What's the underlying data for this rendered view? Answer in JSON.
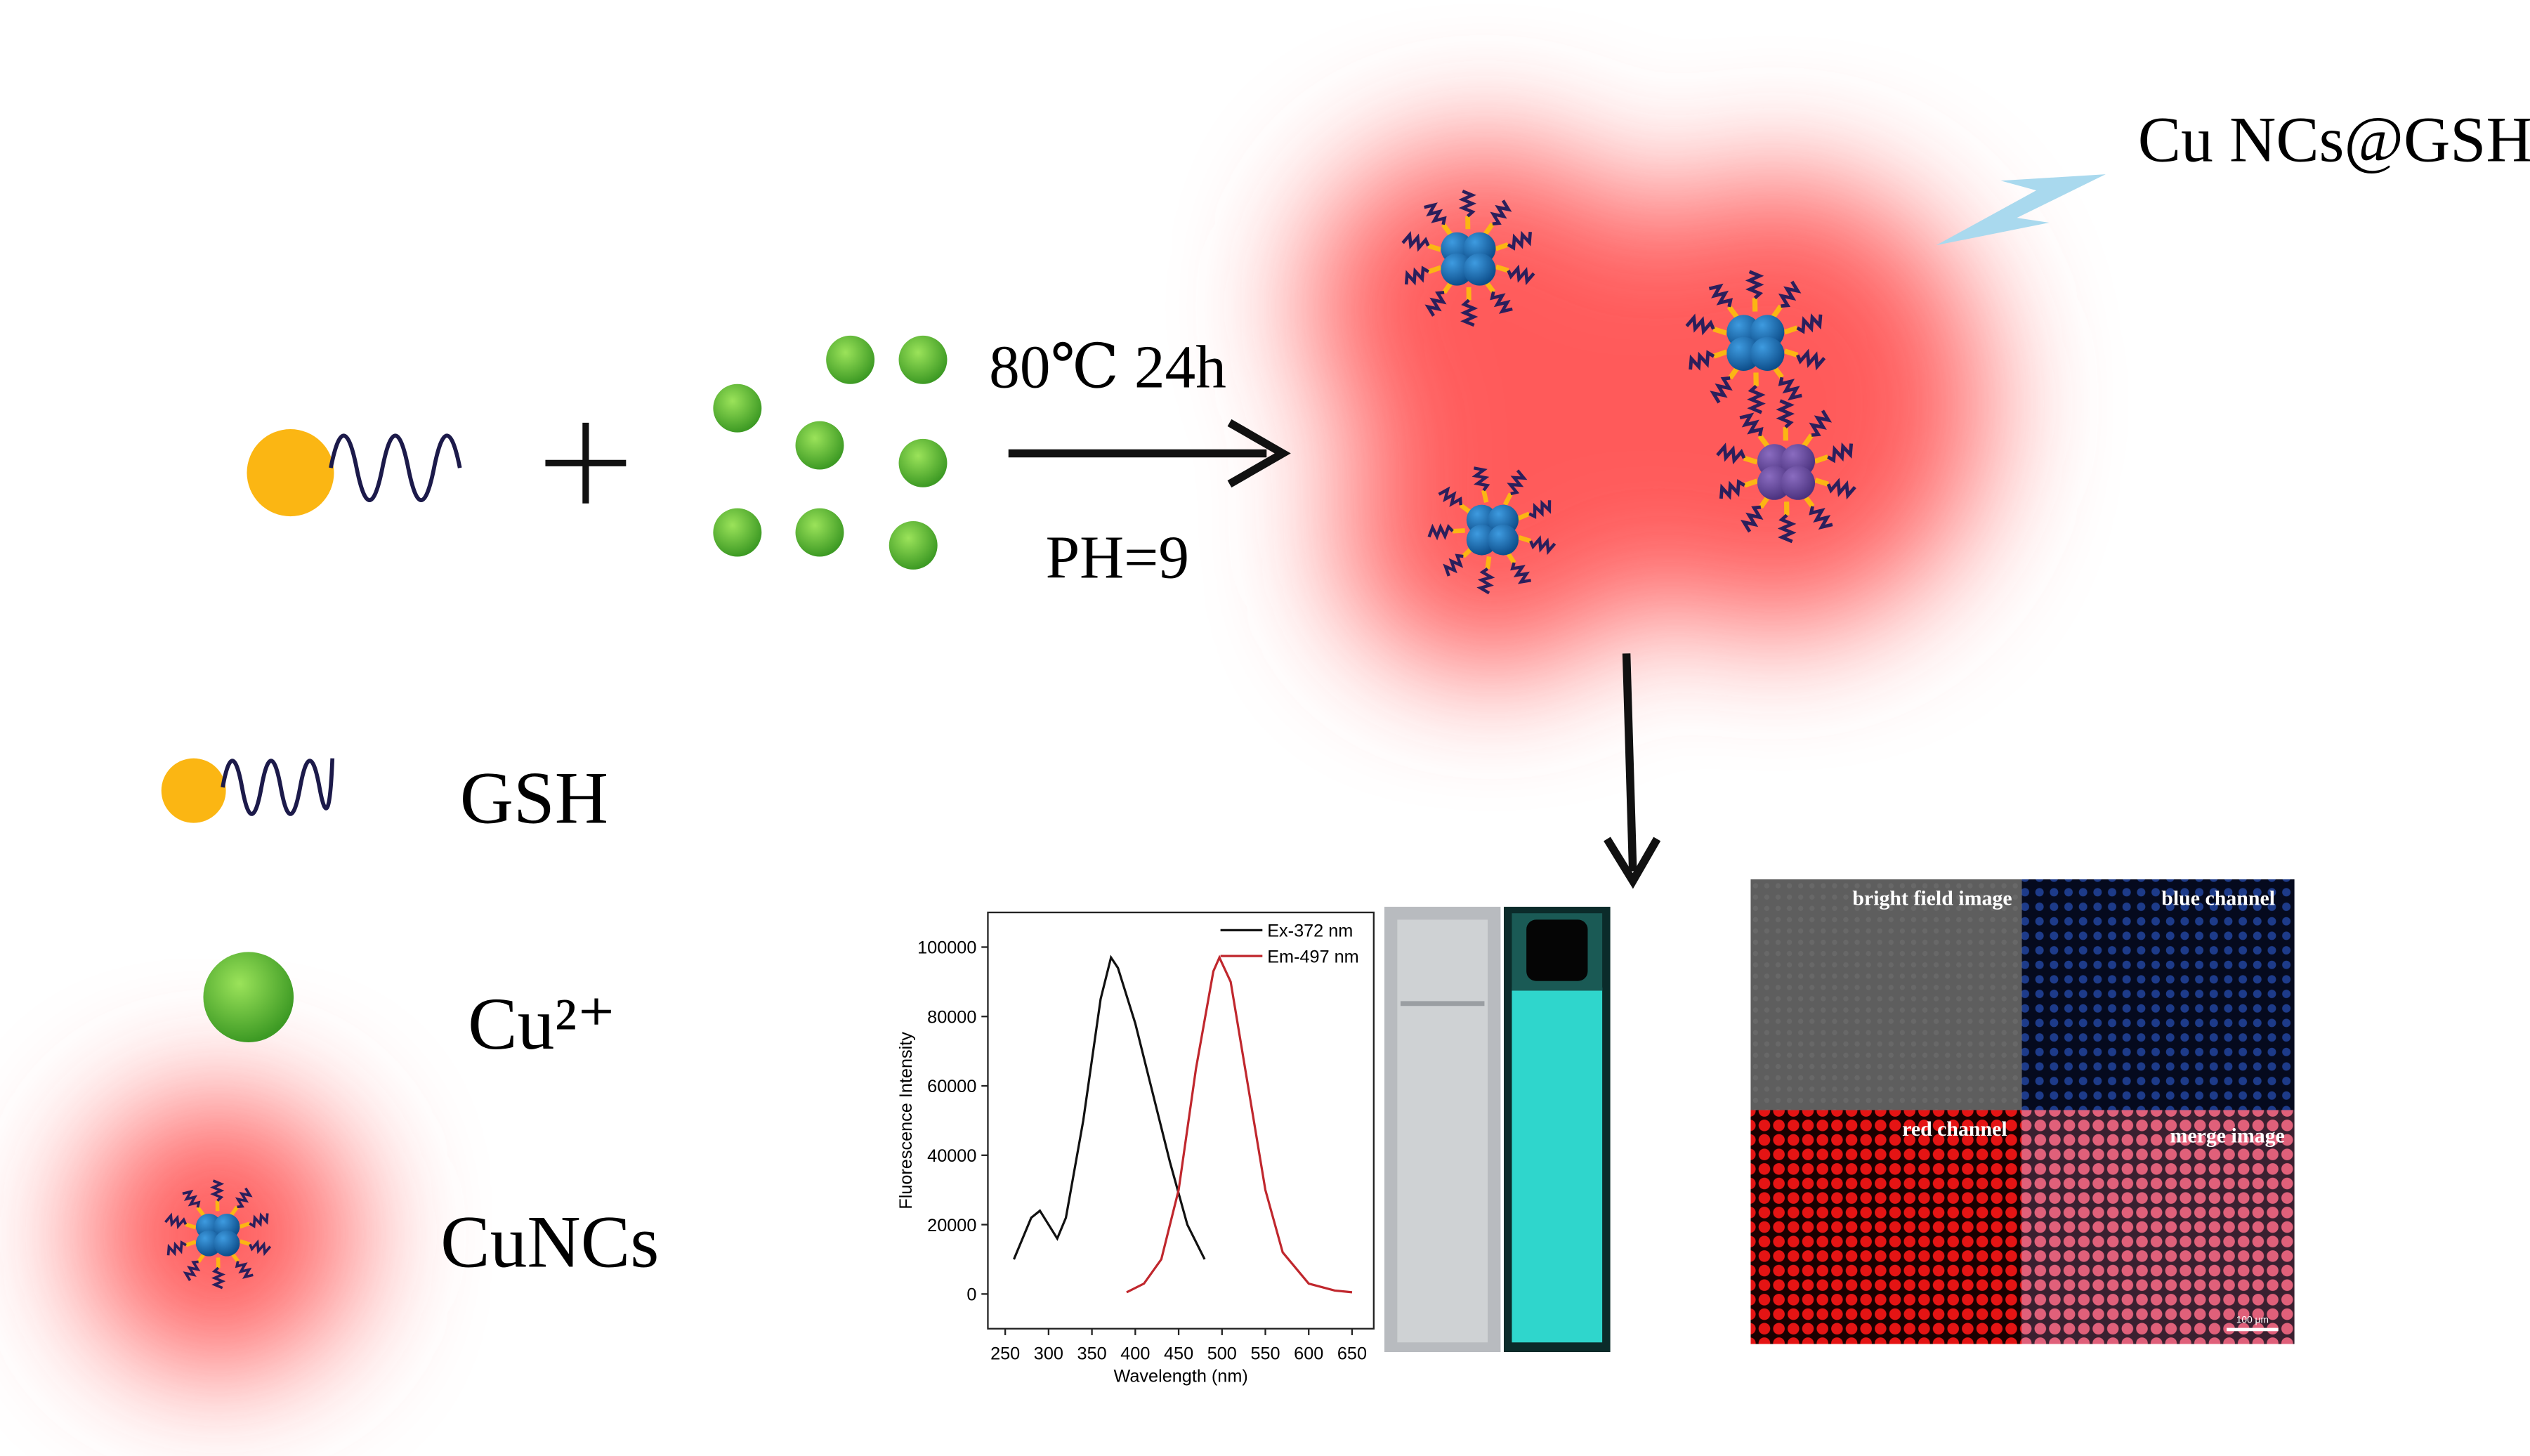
{
  "reaction": {
    "conditions": "80℃  24h",
    "ph": "PH=9",
    "product": "Cu NCs@GSH"
  },
  "legend": {
    "items": [
      "GSH",
      "Cu²⁺",
      "CuNCs"
    ]
  },
  "micrograph": {
    "panels": [
      "bright field image",
      "blue channel",
      "red channel",
      "merge image"
    ],
    "scale_bar": "100 μm"
  },
  "chart_data": {
    "type": "line",
    "x_label": "Wavelength (nm)",
    "y_label": "Fluorescence Intensity",
    "xlim": [
      230,
      675
    ],
    "ylim": [
      -10000,
      110000
    ],
    "xticks": [
      250,
      300,
      350,
      400,
      450,
      500,
      550,
      600,
      650
    ],
    "yticks": [
      0,
      20000,
      40000,
      60000,
      80000,
      100000
    ],
    "legend": "upper right",
    "series": [
      {
        "name": "Ex-372 nm",
        "color": "#111111",
        "x": [
          260,
          280,
          290,
          300,
          310,
          320,
          340,
          360,
          372,
          380,
          400,
          420,
          440,
          460,
          480
        ],
        "values": [
          10000,
          22000,
          24000,
          20000,
          16000,
          22000,
          50000,
          85000,
          97000,
          94000,
          78000,
          58000,
          38000,
          20000,
          10000
        ]
      },
      {
        "name": "Em-497 nm",
        "color": "#c0272d",
        "x": [
          390,
          410,
          430,
          450,
          470,
          490,
          497,
          510,
          530,
          550,
          570,
          600,
          630,
          650
        ],
        "values": [
          500,
          3000,
          10000,
          30000,
          65000,
          93000,
          97000,
          90000,
          60000,
          30000,
          12000,
          3000,
          1000,
          500
        ]
      }
    ]
  }
}
